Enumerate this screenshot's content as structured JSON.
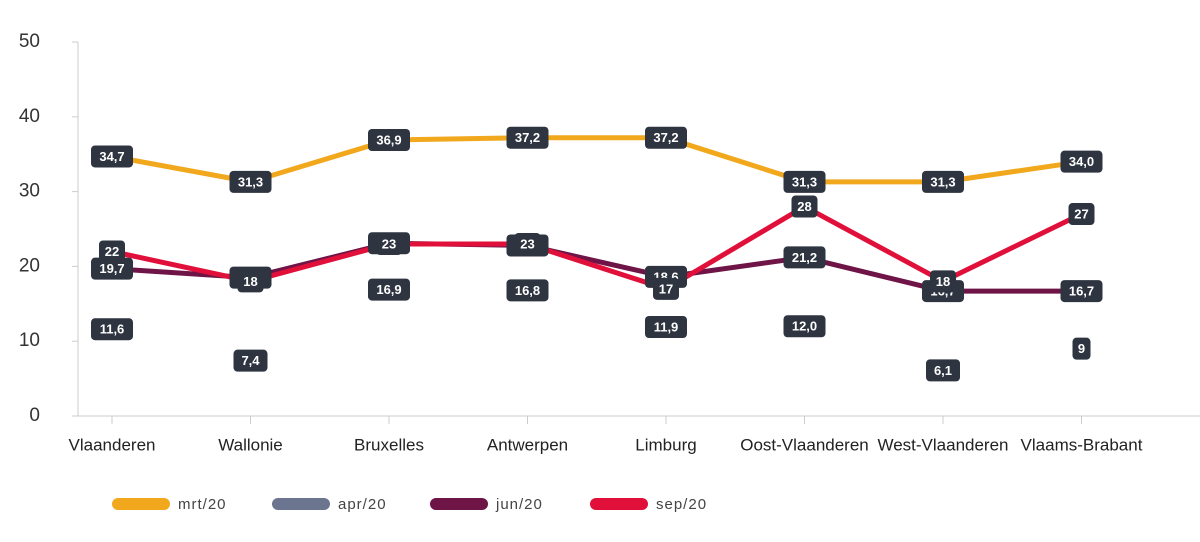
{
  "chart_data": {
    "type": "line",
    "categories": [
      "Vlaanderen",
      "Wallonie",
      "Bruxelles",
      "Antwerpen",
      "Limburg",
      "Oost-Vlaanderen",
      "West-Vlaanderen",
      "Vlaams-Brabant"
    ],
    "ylim": [
      0,
      50
    ],
    "yticks": [
      0,
      10,
      20,
      30,
      40,
      50
    ],
    "legend": "bottom",
    "series": [
      {
        "name": "mrt/20",
        "color": "#f2a81d",
        "show_line": true,
        "values": [
          34.7,
          31.3,
          36.9,
          37.2,
          37.2,
          31.3,
          31.3,
          34.0
        ],
        "value_labels": [
          "34,7",
          "31,3",
          "36,9",
          "37,2",
          "37,2",
          "31,3",
          "31,3",
          "34,0"
        ]
      },
      {
        "name": "apr/20",
        "color": "#6b7590",
        "show_line": false,
        "values": [
          11.6,
          7.4,
          16.9,
          16.8,
          11.9,
          12.0,
          6.1,
          9
        ],
        "value_labels": [
          "11,6",
          "7,4",
          "16,9",
          "16,8",
          "11,9",
          "12,0",
          "6,1",
          "9"
        ]
      },
      {
        "name": "jun/20",
        "color": "#6e1446",
        "show_line": true,
        "values": [
          19.7,
          18.5,
          23.1,
          22.8,
          18.6,
          21.2,
          16.7,
          16.7
        ],
        "value_labels": [
          "19,7",
          "18,5",
          "23,1",
          "22,8",
          "18,6",
          "21,2",
          "16,7",
          "16,7"
        ]
      },
      {
        "name": "sep/20",
        "color": "#e0103a",
        "show_line": true,
        "values": [
          22,
          18,
          23,
          23,
          17,
          28,
          18,
          27
        ]
      }
    ]
  }
}
